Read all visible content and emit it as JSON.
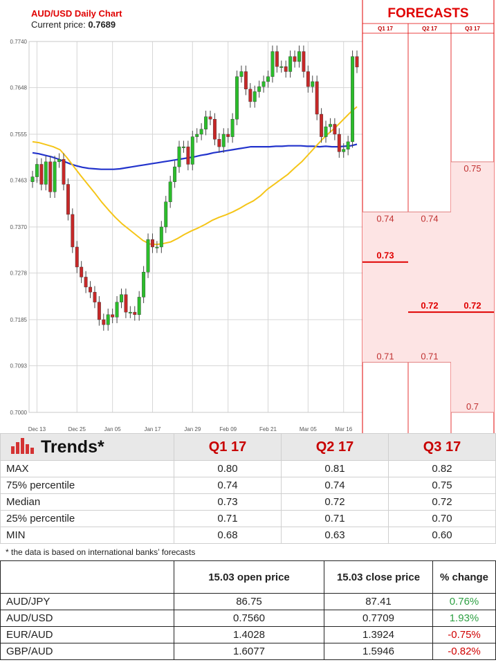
{
  "chart_data": {
    "type": "candlestick",
    "title": "AUD/USD Daily Chart",
    "current_price_label": "Current price:",
    "current_price": "0.7689",
    "y_ticks": [
      "0.7740",
      "0.7648",
      "0.7555",
      "0.7463",
      "0.7370",
      "0.7278",
      "0.7185",
      "0.7093",
      "0.7000"
    ],
    "ylim": [
      0.7,
      0.774
    ],
    "x_tick_labels": [
      "Dec 13",
      "Dec 25",
      "Jan 05",
      "Jan 17",
      "Jan 29",
      "Feb 09",
      "Feb 21",
      "Mar 05",
      "Mar 16"
    ],
    "x_tick_index": [
      1,
      10,
      18,
      27,
      36,
      44,
      53,
      62,
      70
    ],
    "grid": true,
    "closes": [
      0.747,
      0.7495,
      0.7455,
      0.75,
      0.744,
      0.75,
      0.7505,
      0.7455,
      0.7395,
      0.733,
      0.729,
      0.727,
      0.725,
      0.724,
      0.722,
      0.7185,
      0.7175,
      0.7195,
      0.719,
      0.722,
      0.7235,
      0.72,
      0.72,
      0.7195,
      0.723,
      0.728,
      0.7345,
      0.733,
      0.733,
      0.737,
      0.742,
      0.746,
      0.749,
      0.753,
      0.753,
      0.7495,
      0.755,
      0.7555,
      0.7565,
      0.759,
      0.7585,
      0.7545,
      0.753,
      0.7555,
      0.755,
      0.7585,
      0.767,
      0.768,
      0.7645,
      0.762,
      0.764,
      0.765,
      0.766,
      0.767,
      0.772,
      0.769,
      0.769,
      0.768,
      0.771,
      0.77,
      0.772,
      0.768,
      0.765,
      0.766,
      0.7595,
      0.755,
      0.757,
      0.7575,
      0.7555,
      0.752,
      0.7525,
      0.754,
      0.771,
      0.7689
    ],
    "ma50": [
      0.754,
      0.7538,
      0.7534,
      0.753,
      0.7524,
      0.7508,
      0.749,
      0.7472,
      0.7455,
      0.7438,
      0.742,
      0.7404,
      0.7389,
      0.7376,
      0.7365,
      0.7354,
      0.7343,
      0.7336,
      0.7335,
      0.7337,
      0.734,
      0.7347,
      0.7355,
      0.7362,
      0.7368,
      0.7375,
      0.7383,
      0.7389,
      0.7394,
      0.74,
      0.7407,
      0.7415,
      0.7422,
      0.7432,
      0.7445,
      0.7455,
      0.7465,
      0.7475,
      0.7488,
      0.75,
      0.7515,
      0.753,
      0.7545,
      0.7558,
      0.757,
      0.7584,
      0.7598,
      0.761
    ],
    "ma200": [
      0.7518,
      0.7516,
      0.7513,
      0.751,
      0.7506,
      0.7501,
      0.7496,
      0.7492,
      0.7489,
      0.7487,
      0.7486,
      0.7485,
      0.7485,
      0.7485,
      0.7486,
      0.7488,
      0.749,
      0.7492,
      0.7494,
      0.7496,
      0.7498,
      0.75,
      0.7502,
      0.7504,
      0.7506,
      0.7508,
      0.751,
      0.7513,
      0.7515,
      0.7518,
      0.752,
      0.7522,
      0.7524,
      0.7526,
      0.7528,
      0.753,
      0.753,
      0.753,
      0.753,
      0.7531,
      0.7531,
      0.7532,
      0.7532,
      0.7532,
      0.7531,
      0.7531,
      0.753,
      0.7531,
      0.753,
      0.753,
      0.7531,
      0.7532,
      0.7535
    ],
    "colors": {
      "up": "#2bbd2b",
      "down": "#c62828",
      "ma50": "#f5c518",
      "ma200": "#2233cc",
      "forecast_red": "#e00000",
      "forecast_fill": "#fde4e4"
    }
  },
  "forecasts": {
    "title": "FORECASTS",
    "quarters": [
      "Q1 17",
      "Q2 17",
      "Q3 17"
    ],
    "q1": {
      "p75": "0.74",
      "median": "0.73",
      "p25": "0.71"
    },
    "q2": {
      "p75": "0.74",
      "median": "0.72",
      "p25": "0.71"
    },
    "q3": {
      "p75": "0.75",
      "median": "0.72",
      "p25": "0.7"
    }
  },
  "trends": {
    "title": "Trends*",
    "icon": "bar-chart-icon",
    "columns": [
      "Q1 17",
      "Q2 17",
      "Q3 17"
    ],
    "rows": [
      {
        "label": "MAX",
        "values": [
          "0.80",
          "0.81",
          "0.82"
        ]
      },
      {
        "label": "75% percentile",
        "values": [
          "0.74",
          "0.74",
          "0.75"
        ]
      },
      {
        "label": "Median",
        "values": [
          "0.73",
          "0.72",
          "0.72"
        ]
      },
      {
        "label": "25% percentile",
        "values": [
          "0.71",
          "0.71",
          "0.70"
        ]
      },
      {
        "label": "MIN",
        "values": [
          "0.68",
          "0.63",
          "0.60"
        ]
      }
    ],
    "footnote": "* the data is based on international banks’ forecasts"
  },
  "pairs": {
    "columns": [
      "15.03 open price",
      "15.03 close price",
      "% change"
    ],
    "rows": [
      {
        "label": "AUD/JPY",
        "open": "86.75",
        "close": "87.41",
        "change": "0.76%"
      },
      {
        "label": "AUD/USD",
        "open": "0.7560",
        "close": "0.7709",
        "change": "1.93%"
      },
      {
        "label": "EUR/AUD",
        "open": "1.4028",
        "close": "1.3924",
        "change": "-0.75%"
      },
      {
        "label": "GBP/AUD",
        "open": "1.6077",
        "close": "1.5946",
        "change": "-0.82%"
      }
    ]
  }
}
